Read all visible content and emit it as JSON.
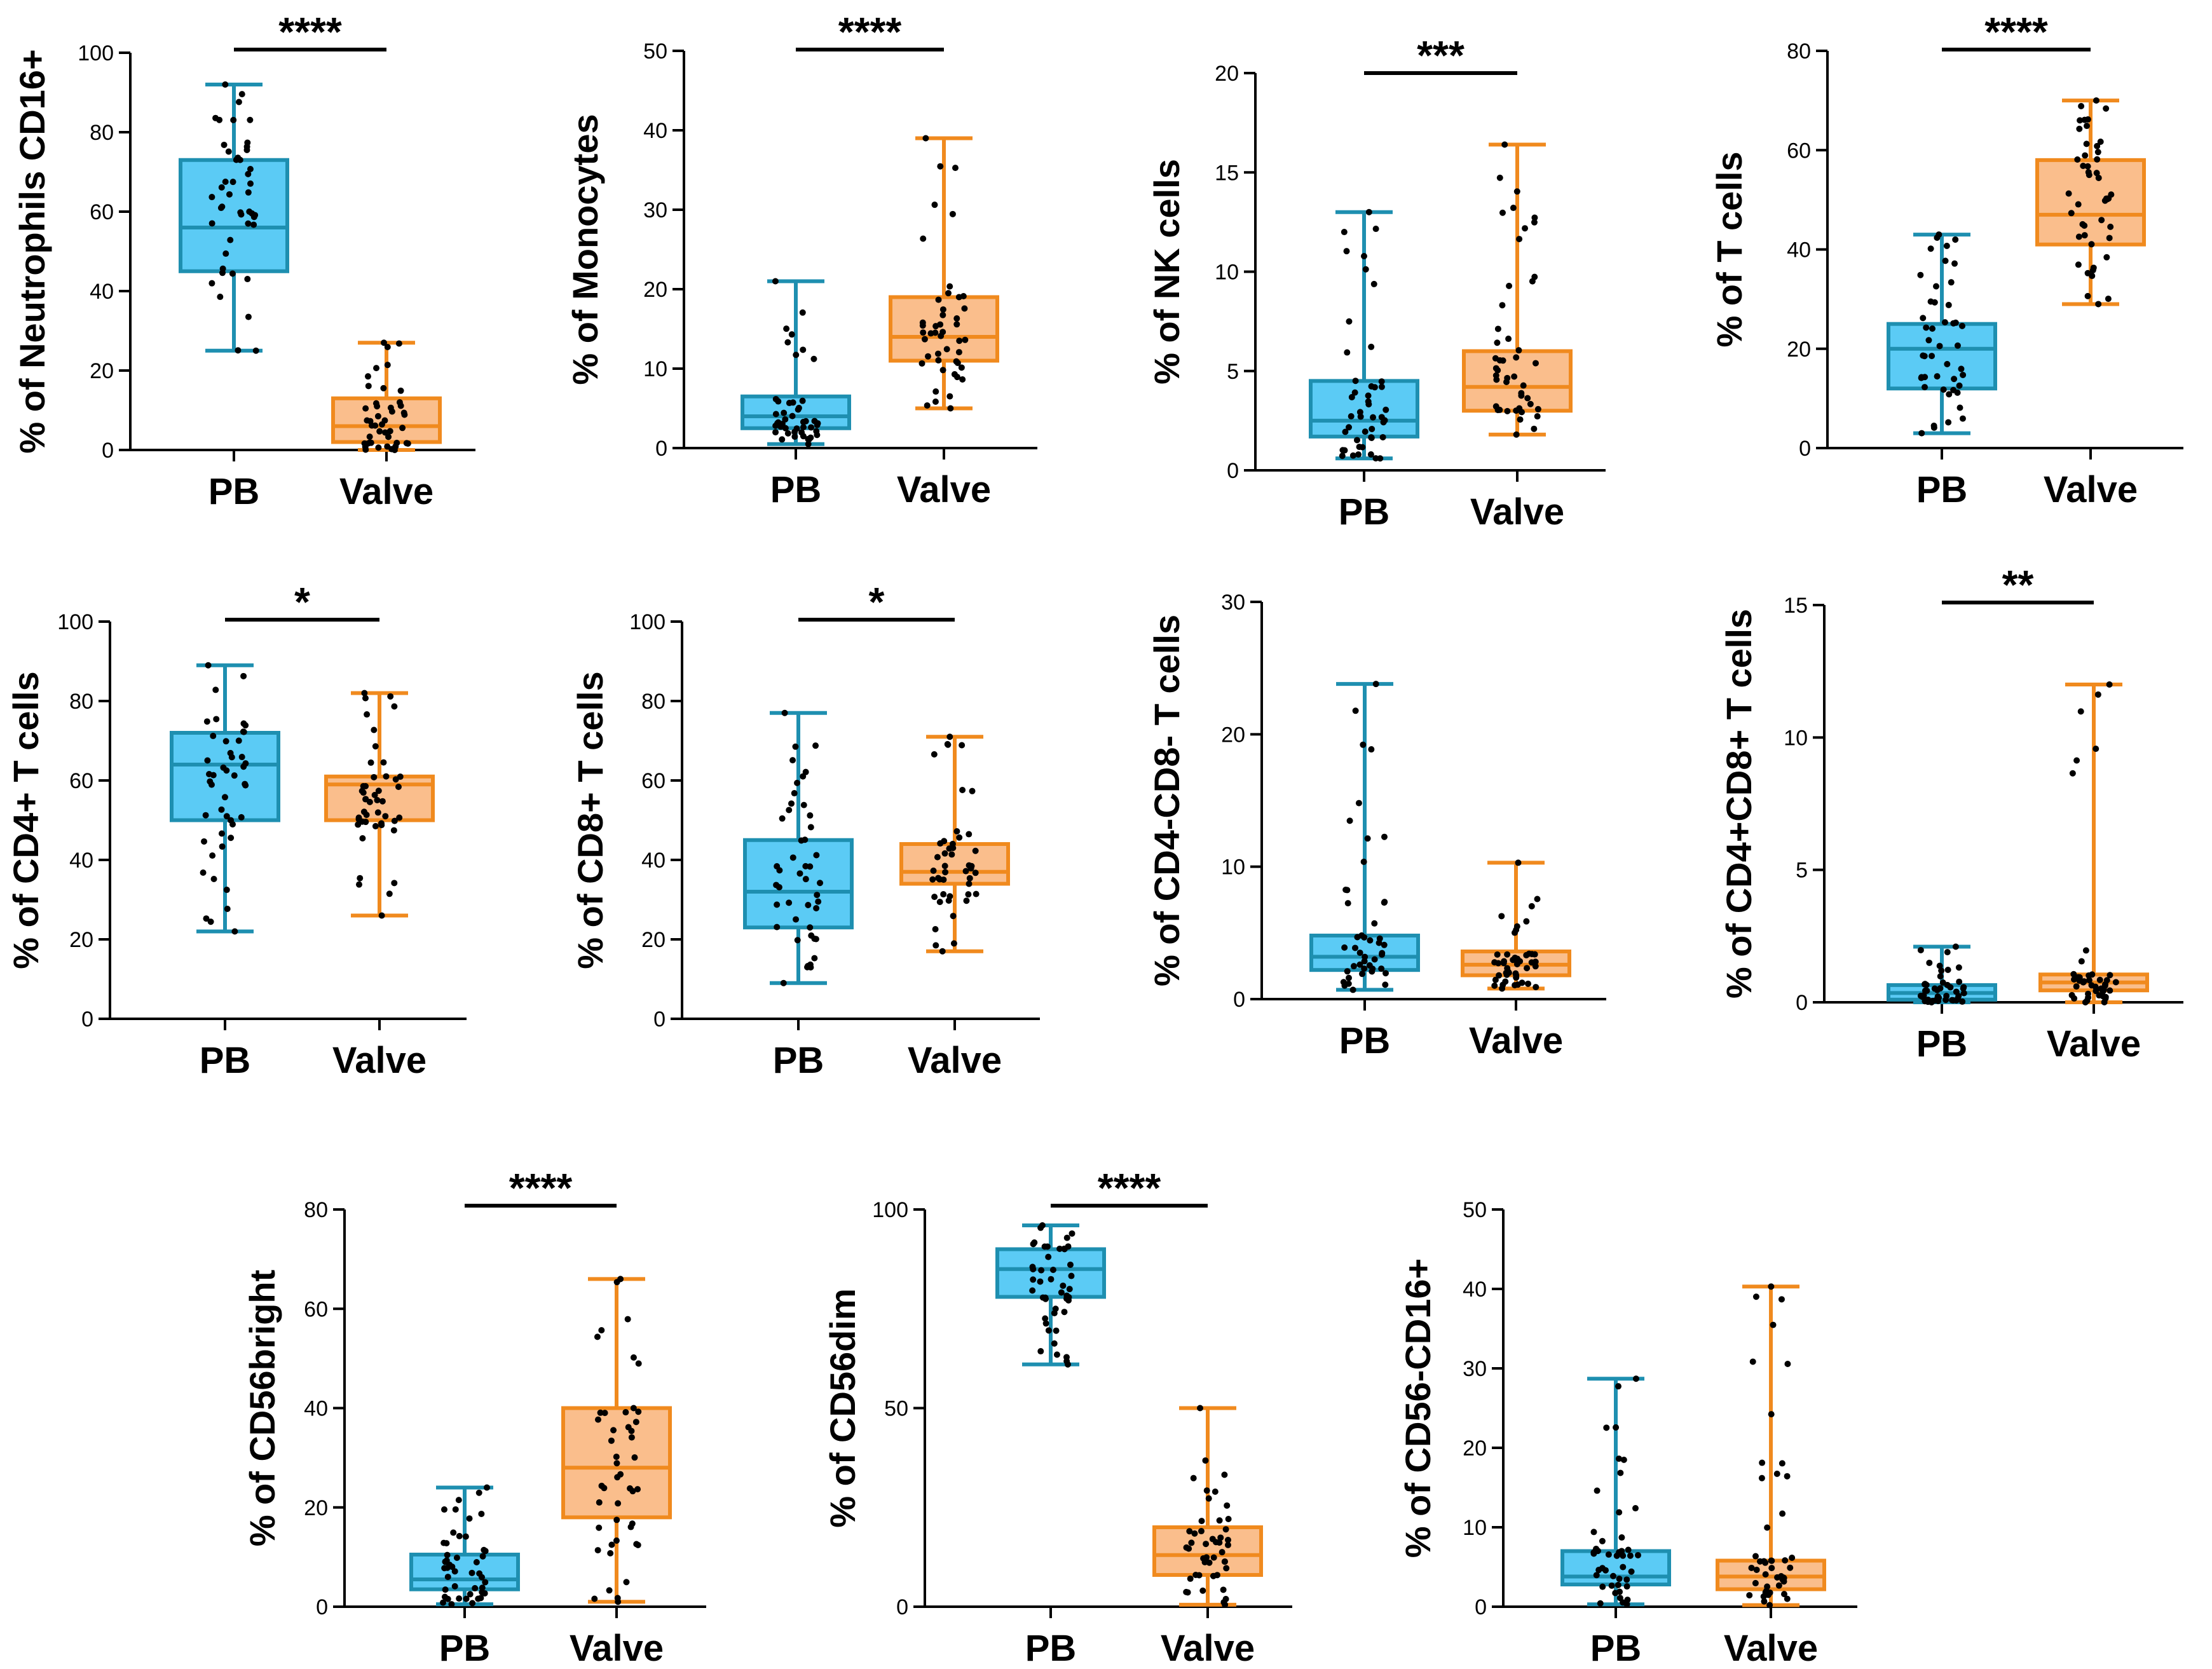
{
  "colors": {
    "pb_fill": "#5BCBF5",
    "pb_stroke": "#1E8FB0",
    "valve_fill": "#FABE8C",
    "valve_stroke": "#F08A1E",
    "dot": "#000000",
    "axis": "#000000"
  },
  "chart_data": [
    {
      "type": "box",
      "ylabel": "% of Neutrophils CD16+",
      "ylim": [
        0,
        100
      ],
      "ticks": [
        0,
        20,
        40,
        60,
        80,
        100
      ],
      "categories": [
        "PB",
        "Valve"
      ],
      "significance": "****",
      "groups": [
        {
          "name": "PB",
          "min": 25,
          "q1": 45,
          "median": 56,
          "q3": 73,
          "max": 92
        },
        {
          "name": "Valve",
          "min": 0,
          "q1": 2,
          "median": 6,
          "q3": 13,
          "max": 27
        }
      ]
    },
    {
      "type": "box",
      "ylabel": "% of Monocytes",
      "ylim": [
        0,
        50
      ],
      "ticks": [
        0,
        10,
        20,
        30,
        40,
        50
      ],
      "categories": [
        "PB",
        "Valve"
      ],
      "significance": "****",
      "groups": [
        {
          "name": "PB",
          "min": 0.5,
          "q1": 2.5,
          "median": 4,
          "q3": 6.5,
          "max": 21
        },
        {
          "name": "Valve",
          "min": 5,
          "q1": 11,
          "median": 14,
          "q3": 19,
          "max": 39
        }
      ]
    },
    {
      "type": "box",
      "ylabel": "% of NK cells",
      "ylim": [
        0,
        20
      ],
      "ticks": [
        0,
        5,
        10,
        15,
        20
      ],
      "categories": [
        "PB",
        "Valve"
      ],
      "significance": "***",
      "groups": [
        {
          "name": "PB",
          "min": 0.6,
          "q1": 1.7,
          "median": 2.5,
          "q3": 4.5,
          "max": 13
        },
        {
          "name": "Valve",
          "min": 1.8,
          "q1": 3,
          "median": 4.2,
          "q3": 6,
          "max": 16.4
        }
      ]
    },
    {
      "type": "box",
      "ylabel": "% of T cells",
      "ylim": [
        0,
        80
      ],
      "ticks": [
        0,
        20,
        40,
        60,
        80
      ],
      "categories": [
        "PB",
        "Valve"
      ],
      "significance": "****",
      "groups": [
        {
          "name": "PB",
          "min": 3,
          "q1": 12,
          "median": 20,
          "q3": 25,
          "max": 43
        },
        {
          "name": "Valve",
          "min": 29,
          "q1": 41,
          "median": 47,
          "q3": 58,
          "max": 70
        }
      ]
    },
    {
      "type": "box",
      "ylabel": "% of CD4+ T cells",
      "ylim": [
        0,
        100
      ],
      "ticks": [
        0,
        20,
        40,
        60,
        80,
        100
      ],
      "categories": [
        "PB",
        "Valve"
      ],
      "significance": "*",
      "groups": [
        {
          "name": "PB",
          "min": 22,
          "q1": 50,
          "median": 64,
          "q3": 72,
          "max": 89
        },
        {
          "name": "Valve",
          "min": 26,
          "q1": 50,
          "median": 59,
          "q3": 61,
          "max": 82
        }
      ]
    },
    {
      "type": "box",
      "ylabel": "% of CD8+ T cells",
      "ylim": [
        0,
        100
      ],
      "ticks": [
        0,
        20,
        40,
        60,
        80,
        100
      ],
      "categories": [
        "PB",
        "Valve"
      ],
      "significance": "*",
      "groups": [
        {
          "name": "PB",
          "min": 9,
          "q1": 23,
          "median": 32,
          "q3": 45,
          "max": 77
        },
        {
          "name": "Valve",
          "min": 17,
          "q1": 34,
          "median": 37,
          "q3": 44,
          "max": 71
        }
      ]
    },
    {
      "type": "box",
      "ylabel": "% of CD4-CD8- T cells",
      "ylim": [
        0,
        30
      ],
      "ticks": [
        0,
        10,
        20,
        30
      ],
      "categories": [
        "PB",
        "Valve"
      ],
      "significance": "",
      "groups": [
        {
          "name": "PB",
          "min": 0.7,
          "q1": 2.2,
          "median": 3.2,
          "q3": 4.8,
          "max": 23.8
        },
        {
          "name": "Valve",
          "min": 0.8,
          "q1": 1.8,
          "median": 2.6,
          "q3": 3.6,
          "max": 10.3
        }
      ]
    },
    {
      "type": "box",
      "ylabel": "% of CD4+CD8+ T cells",
      "ylim": [
        0,
        15
      ],
      "ticks": [
        0,
        5,
        10,
        15
      ],
      "categories": [
        "PB",
        "Valve"
      ],
      "significance": "**",
      "groups": [
        {
          "name": "PB",
          "min": 0,
          "q1": 0.1,
          "median": 0.35,
          "q3": 0.65,
          "max": 2.1
        },
        {
          "name": "Valve",
          "min": 0,
          "q1": 0.45,
          "median": 0.75,
          "q3": 1.05,
          "max": 12
        }
      ]
    },
    {
      "type": "box",
      "ylabel": "% of CD56bright",
      "ylim": [
        0,
        80
      ],
      "ticks": [
        0,
        20,
        40,
        60,
        80
      ],
      "categories": [
        "PB",
        "Valve"
      ],
      "significance": "****",
      "groups": [
        {
          "name": "PB",
          "min": 0.5,
          "q1": 3.5,
          "median": 5.5,
          "q3": 10.5,
          "max": 24
        },
        {
          "name": "Valve",
          "min": 1,
          "q1": 18,
          "median": 28,
          "q3": 40,
          "max": 66
        }
      ]
    },
    {
      "type": "box",
      "ylabel": "% of CD56dim",
      "ylim": [
        0,
        100
      ],
      "ticks": [
        0,
        50,
        100
      ],
      "categories": [
        "PB",
        "Valve"
      ],
      "significance": "****",
      "groups": [
        {
          "name": "PB",
          "min": 61,
          "q1": 78,
          "median": 85,
          "q3": 90,
          "max": 96
        },
        {
          "name": "Valve",
          "min": 0.5,
          "q1": 8,
          "median": 13,
          "q3": 20,
          "max": 50
        }
      ]
    },
    {
      "type": "box",
      "ylabel": "% of CD56-CD16+",
      "ylim": [
        0,
        50
      ],
      "ticks": [
        0,
        10,
        20,
        30,
        40,
        50
      ],
      "categories": [
        "PB",
        "Valve"
      ],
      "significance": "",
      "groups": [
        {
          "name": "PB",
          "min": 0.3,
          "q1": 2.8,
          "median": 3.8,
          "q3": 7,
          "max": 28.7
        },
        {
          "name": "Valve",
          "min": 0.2,
          "q1": 2.2,
          "median": 3.8,
          "q3": 5.8,
          "max": 40.3
        }
      ]
    }
  ]
}
